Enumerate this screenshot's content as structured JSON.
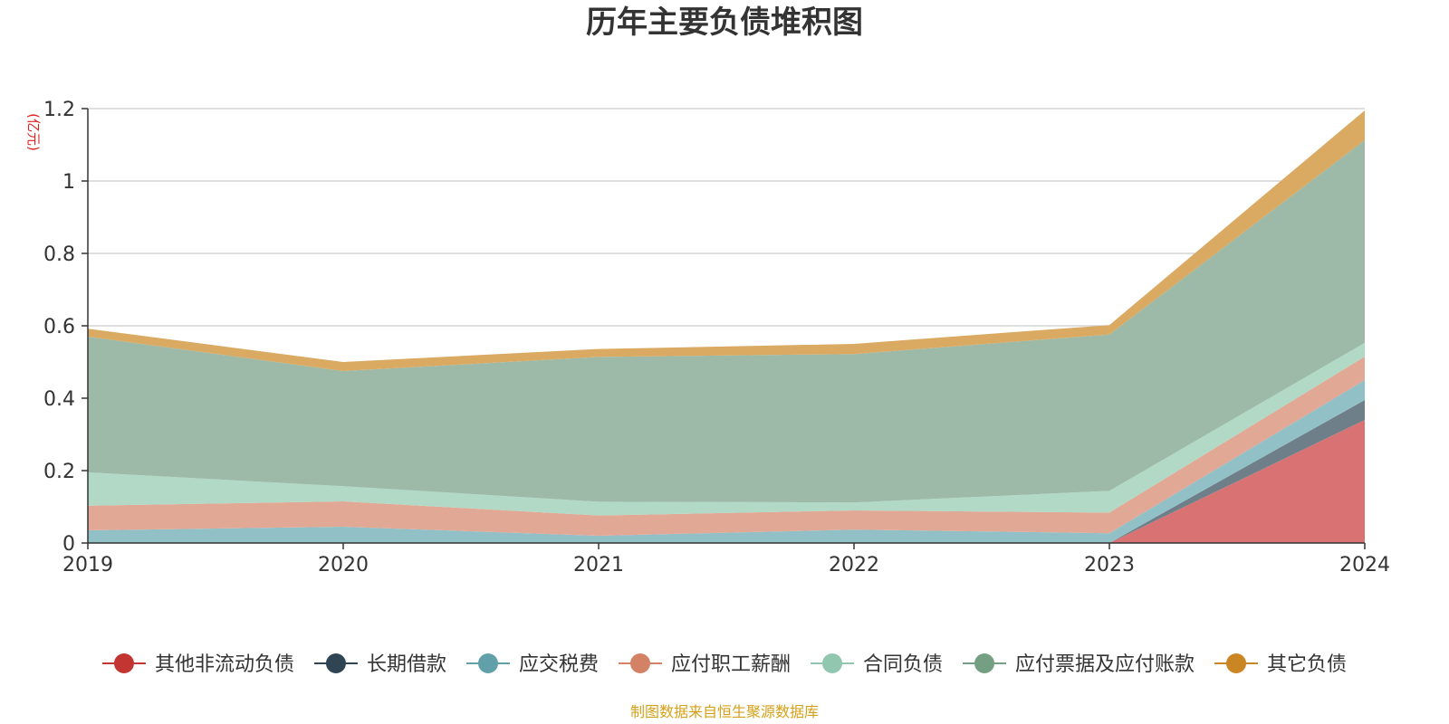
{
  "chart_data": {
    "type": "area",
    "stacked": true,
    "title": "历年主要负债堆积图",
    "unit_label": "(亿元)",
    "source_note": "制图数据来自恒生聚源数据库",
    "x": [
      "2019",
      "2020",
      "2021",
      "2022",
      "2023",
      "2024"
    ],
    "ylim": [
      0,
      1.2
    ],
    "yticks": [
      0,
      0.2,
      0.4,
      0.6,
      0.8,
      1,
      1.2
    ],
    "ytick_labels": [
      "0",
      "0.2",
      "0.4",
      "0.6",
      "0.8",
      "1",
      "1.2"
    ],
    "grid": true,
    "legend_position": "bottom",
    "series": [
      {
        "name": "其他非流动负债",
        "color": "#c23531",
        "fill": "#d97373",
        "values": [
          0,
          0,
          0,
          0,
          0,
          0.34
        ]
      },
      {
        "name": "长期借款",
        "color": "#2f4554",
        "fill": "#6e7f8a",
        "values": [
          0,
          0,
          0,
          0,
          0,
          0.055
        ]
      },
      {
        "name": "应交税费",
        "color": "#61a0a8",
        "fill": "#91c0c6",
        "values": [
          0.035,
          0.045,
          0.02,
          0.037,
          0.027,
          0.055
        ]
      },
      {
        "name": "应付职工薪酬",
        "color": "#d48265",
        "fill": "#e2a896",
        "values": [
          0.068,
          0.07,
          0.056,
          0.053,
          0.057,
          0.065
        ]
      },
      {
        "name": "合同负债",
        "color": "#91c7ae",
        "fill": "#b1d9c6",
        "values": [
          0.092,
          0.042,
          0.038,
          0.022,
          0.06,
          0.038
        ]
      },
      {
        "name": "应付票据及应付账款",
        "color": "#749f83",
        "fill": "#9dbaa8",
        "values": [
          0.375,
          0.318,
          0.4,
          0.41,
          0.432,
          0.56
        ]
      },
      {
        "name": "其它负债",
        "color": "#ca8622",
        "fill": "#daa962",
        "values": [
          0.022,
          0.025,
          0.022,
          0.028,
          0.026,
          0.082
        ]
      }
    ]
  }
}
